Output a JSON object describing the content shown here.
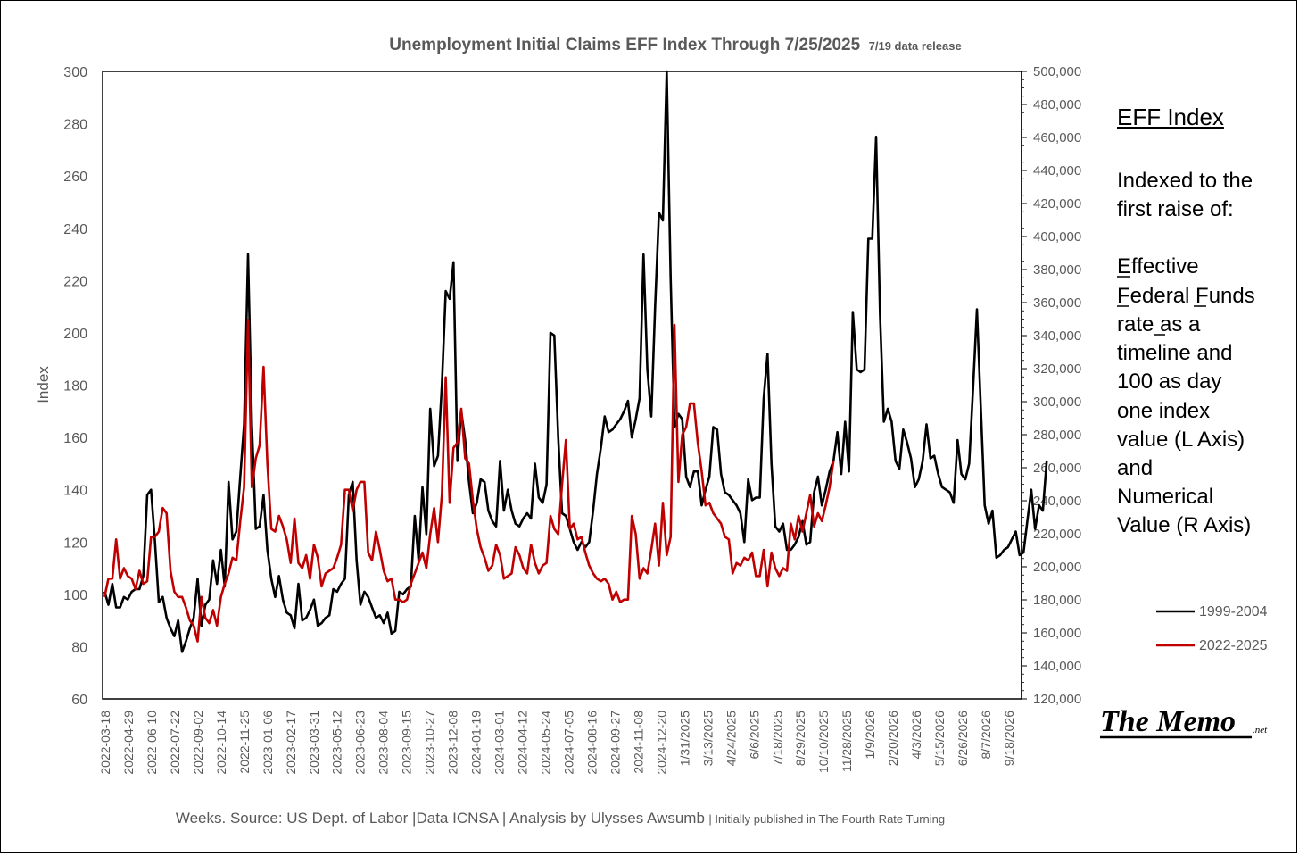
{
  "chart_data": {
    "type": "line",
    "title": "Unemployment Initial Claims EFF Index Through 7/25/2025",
    "subtitle": "7/19 data release",
    "ylabel": "Index",
    "ylim": [
      60,
      300
    ],
    "y_ticks": [
      "300",
      "280",
      "260",
      "240",
      "220",
      "200",
      "180",
      "160",
      "140",
      "120",
      "100",
      "80",
      "60"
    ],
    "y2lim": [
      120000,
      500000
    ],
    "y2_ticks": [
      "500,000",
      "480,000",
      "460,000",
      "440,000",
      "420,000",
      "400,000",
      "380,000",
      "360,000",
      "340,000",
      "320,000",
      "300,000",
      "280,000",
      "260,000",
      "240,000",
      "220,000",
      "200,000",
      "180,000",
      "160,000",
      "140,000",
      "120,000"
    ],
    "x_tick_labels": [
      "2022-03-18",
      "2022-04-29",
      "2022-06-10",
      "2022-07-22",
      "2022-09-02",
      "2022-10-14",
      "2022-11-25",
      "2023-01-06",
      "2023-02-17",
      "2023-03-31",
      "2023-05-12",
      "2023-06-23",
      "2023-08-04",
      "2023-09-15",
      "2023-10-27",
      "2023-12-08",
      "2024-01-19",
      "2024-03-01",
      "2024-04-12",
      "2024-05-24",
      "2024-07-05",
      "2024-08-16",
      "2024-09-27",
      "2024-11-08",
      "2024-12-20",
      "1/31/2025",
      "3/13/2025",
      "4/24/2025",
      "6/6/2025",
      "7/18/2025",
      "8/29/2025",
      "10/10/2025",
      "11/28/2025",
      "1/9/2026",
      "2/20/2026",
      "4/3/2026",
      "5/15/2026",
      "6/26/2026",
      "8/7/2026",
      "9/18/2026"
    ],
    "x_points": 237,
    "series": [
      {
        "name": "1999-2004",
        "color": "#000000",
        "values": [
          101,
          96,
          104,
          95,
          95,
          99,
          98,
          101,
          102,
          102,
          107,
          138,
          140,
          120,
          97,
          99,
          91,
          87,
          84,
          90,
          78,
          82,
          87,
          91,
          106,
          88,
          96,
          98,
          113,
          104,
          117,
          103,
          143,
          121,
          124,
          145,
          165,
          230,
          165,
          125,
          126,
          138,
          117,
          106,
          99,
          107,
          98,
          93,
          92,
          87,
          104,
          90,
          91,
          94,
          98,
          88,
          89,
          91,
          92,
          102,
          101,
          104,
          106,
          138,
          143,
          113,
          96,
          101,
          99,
          95,
          91,
          92,
          89,
          93,
          85,
          86,
          101,
          100,
          102,
          103,
          130,
          113,
          141,
          123,
          171,
          149,
          153,
          180,
          216,
          213,
          227,
          151,
          170,
          159,
          143,
          131,
          135,
          144,
          143,
          132,
          128,
          126,
          151,
          132,
          140,
          132,
          127,
          126,
          129,
          131,
          129,
          150,
          137,
          135,
          142,
          200,
          199,
          160,
          131,
          130,
          125,
          120,
          117,
          120,
          118,
          120,
          132,
          146,
          156,
          168,
          162,
          163,
          165,
          167,
          170,
          174,
          160,
          167,
          175,
          230,
          186,
          168,
          210,
          246,
          243,
          300,
          221,
          164,
          169,
          167,
          145,
          141,
          147,
          147,
          134,
          140,
          145,
          164,
          163,
          146,
          139,
          138,
          136,
          134,
          131,
          120,
          144,
          136,
          137,
          137,
          175,
          192,
          150,
          126,
          124,
          127,
          117,
          117,
          119,
          122,
          128,
          119,
          120,
          139,
          145,
          134,
          140,
          147,
          151,
          162,
          146,
          166,
          147,
          208,
          186,
          185,
          186,
          236,
          236,
          275,
          207,
          166,
          171,
          166,
          151,
          148,
          163,
          158,
          152,
          141,
          144,
          151,
          165,
          152,
          153,
          146,
          141,
          140,
          139,
          135,
          159,
          146,
          144,
          150,
          179,
          209,
          171,
          134,
          127,
          132,
          114,
          115,
          117,
          118,
          121,
          124,
          115,
          116,
          128,
          140,
          125,
          134,
          132,
          151
        ]
      },
      {
        "name": "2022-2025",
        "color": "#c00000",
        "values": [
          99,
          106,
          106,
          121,
          106,
          110,
          107,
          106,
          102,
          109,
          104,
          105,
          122,
          122,
          124,
          133,
          131,
          109,
          101,
          99,
          99,
          95,
          90,
          88,
          82,
          99,
          91,
          89,
          94,
          88,
          99,
          104,
          108,
          114,
          113,
          128,
          141,
          205,
          141,
          152,
          157,
          187,
          150,
          125,
          124,
          130,
          126,
          121,
          112,
          129,
          112,
          110,
          115,
          106,
          119,
          114,
          103,
          108,
          109,
          110,
          114,
          119,
          140,
          140,
          132,
          140,
          143,
          143,
          116,
          113,
          124,
          117,
          109,
          105,
          106,
          98,
          98,
          97,
          98,
          104,
          108,
          112,
          116,
          110,
          123,
          133,
          120,
          138,
          183,
          135,
          156,
          158,
          171,
          152,
          150,
          136,
          125,
          118,
          114,
          109,
          111,
          119,
          115,
          106,
          107,
          108,
          118,
          115,
          110,
          108,
          119,
          112,
          108,
          111,
          112,
          130,
          125,
          123,
          142,
          159,
          125,
          127,
          121,
          122,
          116,
          111,
          108,
          106,
          105,
          106,
          104,
          98,
          101,
          97,
          98,
          98,
          130,
          123,
          106,
          110,
          108,
          117,
          127,
          111,
          135,
          115,
          122,
          203,
          143,
          161,
          164,
          173,
          173,
          158,
          147,
          134,
          135,
          131,
          129,
          127,
          122,
          121,
          108,
          112,
          111,
          114,
          113,
          116,
          107,
          107,
          117,
          103,
          116,
          110,
          107,
          110,
          109,
          127,
          121,
          130,
          124,
          131,
          138,
          126,
          131,
          128,
          134,
          141,
          151
        ]
      }
    ],
    "legend": [
      "1999-2004",
      "2022-2025"
    ]
  },
  "annotation": {
    "heading": "EFF Index",
    "lines": [
      "Indexed to the",
      "first raise of:",
      "",
      "Effective",
      "Federal Funds",
      "rate as a",
      "timeline and",
      "100 as day",
      "one index",
      "value (L Axis)",
      "and",
      "Numerical",
      "Value (R Axis)"
    ]
  },
  "footer": {
    "main": "Weeks. Source: US Dept. of Labor |Data ICNSA | Analysis by Ulysses Awsumb",
    "small": " | Initially published in The Fourth Rate Turning"
  },
  "logo": {
    "text": "The Memo",
    "suffix": ".net"
  }
}
